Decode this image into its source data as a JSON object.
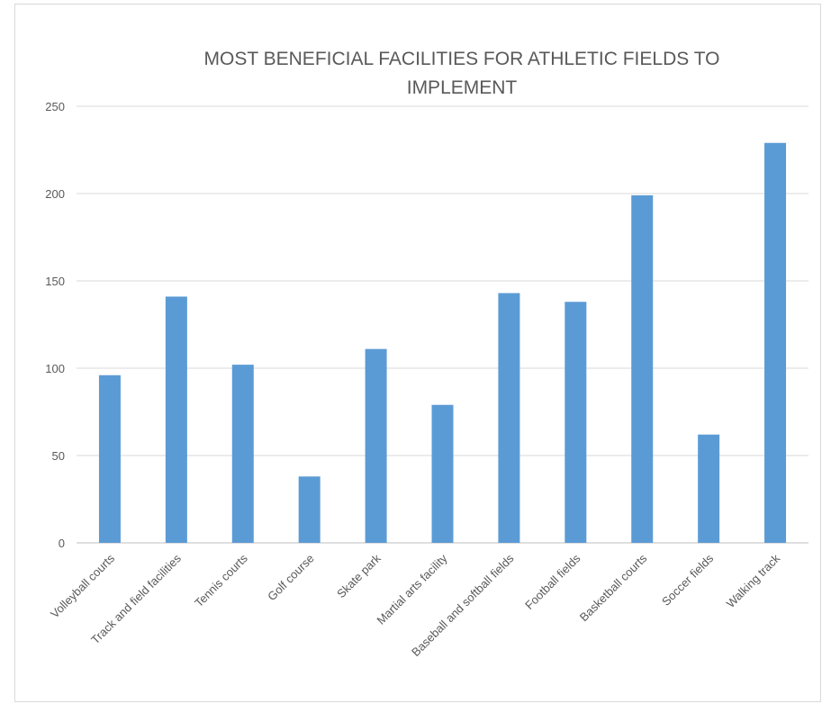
{
  "chart_data": {
    "type": "bar",
    "title_lines": [
      "MOST BENEFICIAL FACILITIES FOR ATHLETIC FIELDS TO",
      "IMPLEMENT"
    ],
    "categories": [
      "Volleyball courts",
      "Track and field facilities",
      "Tennis courts",
      "Golf course",
      "Skate park",
      "Martial arts facility",
      "Baseball and softball fields",
      "Football fields",
      "Basketball courts",
      "Soccer fields",
      "Walking track"
    ],
    "values": [
      96,
      141,
      102,
      38,
      111,
      79,
      143,
      138,
      199,
      62,
      229
    ],
    "ylim": [
      0,
      250
    ],
    "yticks": [
      0,
      50,
      100,
      150,
      200,
      250
    ],
    "grid": true,
    "legend": "none",
    "bar_color": "#5b9bd5"
  }
}
